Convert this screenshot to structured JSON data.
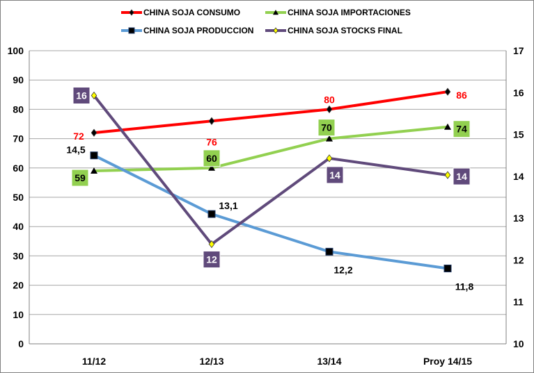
{
  "chart_data": {
    "type": "line",
    "categories": [
      "11/12",
      "12/13",
      "13/14",
      "Proy 14/15"
    ],
    "left_axis": {
      "min": 0,
      "max": 100,
      "step": 10
    },
    "right_axis": {
      "min": 10,
      "max": 17,
      "step": 1
    },
    "grid": true,
    "legend_position": "top",
    "series": [
      {
        "name": "CHINA SOJA CONSUMO",
        "axis": "left",
        "color": "#ff0000",
        "marker": "diamond",
        "marker_color": "#000000",
        "values": [
          72,
          76,
          80,
          86
        ],
        "labels": [
          "72",
          "76",
          "80",
          "86"
        ],
        "label_color": "#ff0000",
        "label_boxed": false
      },
      {
        "name": "CHINA SOJA IMPORTACIONES",
        "axis": "left",
        "color": "#92d050",
        "marker": "triangle",
        "marker_color": "#000000",
        "values": [
          59,
          60,
          70,
          74
        ],
        "labels": [
          "59",
          "60",
          "70",
          "74"
        ],
        "label_color": "#000000",
        "label_boxed": true,
        "label_box_color": "#92d050"
      },
      {
        "name": "CHINA SOJA PRODUCCION",
        "axis": "right",
        "color": "#5b9bd5",
        "marker": "square",
        "marker_color": "#000000",
        "values": [
          14.5,
          13.1,
          12.2,
          11.8
        ],
        "labels": [
          "14,5",
          "13,1",
          "12,2",
          "11,8"
        ],
        "label_color": "#000000",
        "label_boxed": false
      },
      {
        "name": "CHINA SOJA STOCKS FINAL",
        "axis": "right",
        "color": "#604a7b",
        "marker": "diamond",
        "marker_color": "#ffff00",
        "values": [
          15.93,
          12.38,
          14.43,
          14.03
        ],
        "labels": [
          "16",
          "12",
          "14",
          "14"
        ],
        "label_color": "#ffffff",
        "label_boxed": true,
        "label_box_color": "#604a7b"
      }
    ]
  }
}
